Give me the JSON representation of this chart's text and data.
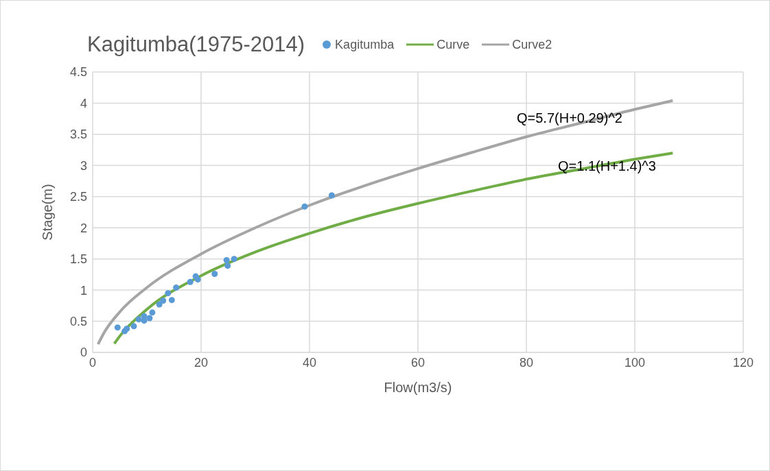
{
  "chart_data": {
    "type": "scatter",
    "title": "Kagitumba(1975-2014)",
    "xlabel": "Flow(m3/s)",
    "ylabel": "Stage(m)",
    "xlim": [
      0,
      120
    ],
    "xticks": [
      0,
      20,
      40,
      60,
      80,
      100,
      120
    ],
    "ylim": [
      0,
      4.5
    ],
    "yticks": [
      0,
      0.5,
      1,
      1.5,
      2,
      2.5,
      3,
      3.5,
      4,
      4.5
    ],
    "grid": true,
    "legend": "top",
    "marker": "circle",
    "series": [
      {
        "name": "Kagitumba",
        "color": "#5b9bd5",
        "x": [
          4.6,
          5.9,
          6.3,
          7.6,
          8.5,
          9.5,
          9.5,
          10.5,
          11.0,
          12.3,
          13.0,
          13.9,
          14.6,
          15.4,
          18.0,
          19.0,
          19.4,
          22.5,
          24.7,
          24.9,
          26.1,
          39.1,
          44.1
        ],
        "values": [
          0.4,
          0.34,
          0.38,
          0.42,
          0.53,
          0.51,
          0.58,
          0.55,
          0.64,
          0.77,
          0.83,
          0.95,
          0.84,
          1.04,
          1.13,
          1.22,
          1.17,
          1.26,
          1.48,
          1.39,
          1.5,
          2.34,
          2.52
        ]
      },
      {
        "name": "Curve",
        "type": "line",
        "marker": "none",
        "color": "#70ad47",
        "x": [
          4,
          5,
          10,
          20,
          30,
          40,
          50,
          60,
          70,
          80,
          90,
          100,
          107
        ],
        "values": [
          0.14,
          0.26,
          0.69,
          1.23,
          1.61,
          1.91,
          2.17,
          2.39,
          2.59,
          2.78,
          2.94,
          3.1,
          3.2
        ]
      },
      {
        "name": "Curve2",
        "type": "line",
        "marker": "none",
        "color": "#a5a5a5",
        "x": [
          1,
          2,
          5,
          10,
          20,
          30,
          40,
          50,
          60,
          70,
          80,
          90,
          100,
          107
        ],
        "values": [
          0.13,
          0.3,
          0.65,
          1.04,
          1.58,
          2.0,
          2.36,
          2.67,
          2.95,
          3.21,
          3.46,
          3.68,
          3.9,
          4.04
        ]
      }
    ],
    "annotations": [
      "Q=5.7(H+0.29)^2",
      "Q=1.1(H+1.4)^3"
    ]
  }
}
